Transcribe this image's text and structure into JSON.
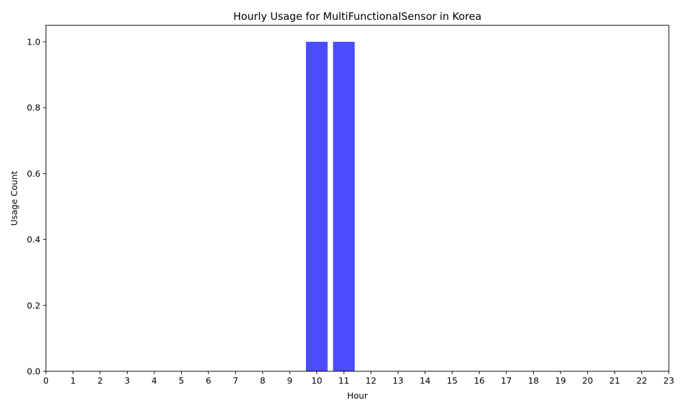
{
  "chart_data": {
    "type": "bar",
    "title": "Hourly Usage for MultiFunctionalSensor in Korea",
    "xlabel": "Hour",
    "ylabel": "Usage Count",
    "categories": [
      "0",
      "1",
      "2",
      "3",
      "4",
      "5",
      "6",
      "7",
      "8",
      "9",
      "10",
      "11",
      "12",
      "13",
      "14",
      "15",
      "16",
      "17",
      "18",
      "19",
      "20",
      "21",
      "22",
      "23"
    ],
    "values": [
      0,
      0,
      0,
      0,
      0,
      0,
      0,
      0,
      0,
      0,
      1,
      1,
      0,
      0,
      0,
      0,
      0,
      0,
      0,
      0,
      0,
      0,
      0,
      0
    ],
    "xlim": [
      0,
      23
    ],
    "ylim": [
      0,
      1.05
    ],
    "yticks": [
      "0.0",
      "0.2",
      "0.4",
      "0.6",
      "0.8",
      "1.0"
    ],
    "bar_color": "#4c4cff",
    "grid": false
  }
}
